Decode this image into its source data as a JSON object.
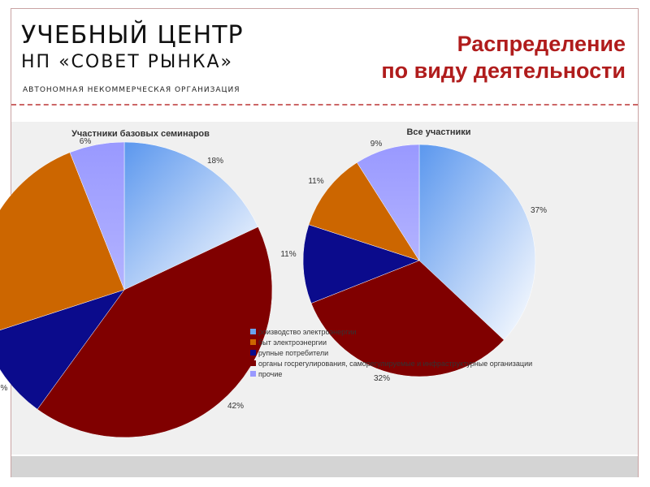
{
  "header": {
    "org_title": "УЧЕБНЫЙ ЦЕНТР",
    "org_subtitle": "НП «СОВЕТ РЫНКА»",
    "org_tagline": "АВТОНОМНАЯ НЕКОММЕРЧЕСКАЯ ОРГАНИЗАЦИЯ",
    "slide_title_line1": "Распределение",
    "slide_title_line2": "по виду деятельности"
  },
  "colors": {
    "production": "#6aa3ee",
    "sales": "#cc6600",
    "consumers": "#0b0b8c",
    "organizations": "#800000",
    "other": "#9999ff",
    "title": "#b01c1c"
  },
  "chart_data": [
    {
      "type": "pie",
      "title": "Участники базовых семинаров",
      "slices": [
        {
          "category": "Производство электроэнергии",
          "value": 18,
          "label": "18%"
        },
        {
          "category": "Организации",
          "value": 42,
          "label": "42%"
        },
        {
          "category": "Крупные потребители",
          "value": 10,
          "label": "%"
        },
        {
          "category": "Сбыт электроэнергии",
          "value": 24,
          "label": ""
        },
        {
          "category": "прочие",
          "value": 6,
          "label": "6%"
        }
      ]
    },
    {
      "type": "pie",
      "title": "Все участники",
      "slices": [
        {
          "category": "Производство электроэнергии",
          "value": 37,
          "label": "37%"
        },
        {
          "category": "Организации",
          "value": 32,
          "label": "32%"
        },
        {
          "category": "Крупные потребители",
          "value": 11,
          "label": "11%"
        },
        {
          "category": "Сбыт электроэнергии",
          "value": 11,
          "label": "11%"
        },
        {
          "category": "прочие",
          "value": 9,
          "label": "9%"
        }
      ]
    }
  ],
  "legend": [
    {
      "key": "production",
      "label": "роизводство электроэнергии"
    },
    {
      "key": "sales",
      "label": "быт электроэнергии"
    },
    {
      "key": "consumers",
      "label": "рупные потребители"
    },
    {
      "key": "organizations",
      "label": "органы госрегулирования, саморегулируемые и инфраструктурные организации"
    },
    {
      "key": "other",
      "label": "прочие"
    }
  ]
}
